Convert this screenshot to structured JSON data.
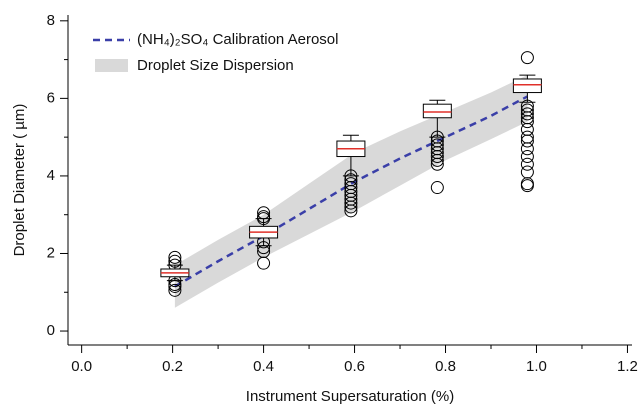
{
  "chart_data": {
    "type": "box",
    "xlabel": "Instrument Supersaturation (%)",
    "ylabel": "Droplet Diameter ( µm)",
    "xlim": [
      -0.03,
      1.21
    ],
    "ylim": [
      -0.36,
      8.15
    ],
    "xticks": [
      {
        "value": 0,
        "label": "0.0"
      },
      0.2,
      0.4,
      0.6,
      0.8,
      {
        "value": 1,
        "label": "1.0"
      },
      1.2
    ],
    "xminorticks": [
      0.1,
      0.3,
      0.5,
      0.7,
      0.9,
      1.1
    ],
    "yticks": [
      0,
      2,
      4,
      6,
      8
    ],
    "yminorticks": [
      1,
      3,
      5,
      7
    ],
    "line": {
      "name": "(NH₄)₂SO₄ Calibration Aerosol",
      "color": "#3a3fa8",
      "x": [
        0.205,
        0.3,
        0.4,
        0.5,
        0.6,
        0.7,
        0.8,
        0.9,
        0.98
      ],
      "values": [
        1.15,
        1.8,
        2.45,
        3.15,
        3.85,
        4.45,
        5.0,
        5.55,
        6.05
      ]
    },
    "band": {
      "name": "Droplet Size Dispersion",
      "color": "#d9d9d9",
      "x": [
        0.205,
        0.3,
        0.4,
        0.5,
        0.6,
        0.7,
        0.8,
        0.9,
        0.98
      ],
      "upper": [
        1.7,
        2.35,
        3.0,
        3.8,
        4.6,
        5.15,
        5.65,
        6.15,
        6.6
      ],
      "lower": [
        0.6,
        1.25,
        1.9,
        2.5,
        3.1,
        3.75,
        4.4,
        4.95,
        5.4
      ]
    },
    "boxes": [
      {
        "x": 0.205,
        "min": 1.3,
        "q1": 1.4,
        "median": 1.5,
        "q3": 1.6,
        "max": 1.7,
        "outliers": [
          1.05,
          1.15,
          1.2,
          1.3,
          1.7,
          1.8,
          1.9
        ]
      },
      {
        "x": 0.4,
        "min": 2.2,
        "q1": 2.4,
        "median": 2.55,
        "q3": 2.7,
        "max": 2.9,
        "outliers": [
          1.75,
          2.05,
          2.15,
          2.3,
          2.9,
          2.95,
          3.05
        ]
      },
      {
        "x": 0.592,
        "min": 4.0,
        "q1": 4.5,
        "median": 4.7,
        "q3": 4.9,
        "max": 5.05,
        "outliers": [
          3.1,
          3.2,
          3.3,
          3.4,
          3.5,
          3.6,
          3.7,
          3.8,
          3.9,
          4.0
        ]
      },
      {
        "x": 0.782,
        "min": 5.0,
        "q1": 5.5,
        "median": 5.65,
        "q3": 5.85,
        "max": 5.95,
        "outliers": [
          3.7,
          4.3,
          4.4,
          4.5,
          4.6,
          4.7,
          4.8,
          4.9,
          5.0
        ]
      },
      {
        "x": 0.98,
        "min": 5.9,
        "q1": 6.15,
        "median": 6.35,
        "q3": 6.5,
        "max": 6.6,
        "outliers": [
          3.75,
          3.8,
          4.1,
          4.3,
          4.5,
          4.7,
          4.9,
          5.0,
          5.2,
          5.4,
          5.5,
          5.6,
          5.7,
          5.8,
          7.05
        ]
      }
    ],
    "box_color": "#000000",
    "median_color": "#e0302a"
  }
}
